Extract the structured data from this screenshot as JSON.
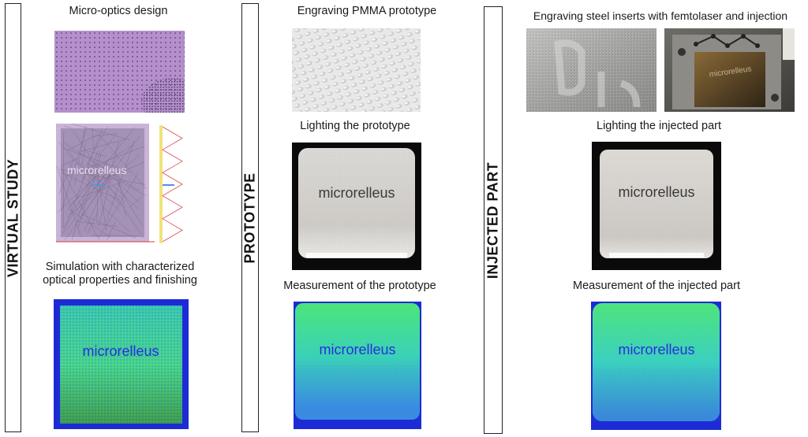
{
  "columns": [
    {
      "label": "VIRTUAL STUDY",
      "captions": {
        "top": "Micro-optics design",
        "mid": "Simulation with characterized\noptical properties and finishing"
      },
      "word": "microrelleus"
    },
    {
      "label": "PROTOTYPE",
      "captions": {
        "top": "Engraving PMMA prototype",
        "mid": "Lighting the prototype",
        "bottom": "Measurement of the prototype"
      },
      "word": "microrelleus"
    },
    {
      "label": "INJECTED PART",
      "captions": {
        "top": "Engraving steel inserts with femtolaser and injection",
        "mid": "Lighting the injected part",
        "bottom": "Measurement of the injected part"
      },
      "word": "microrelleus"
    }
  ],
  "colors": {
    "design_purple": "#b08cc8",
    "heatmap_blue": "#1d2bd6",
    "heatmap_green": "#3fd39a",
    "lit_panel": "#d8d6d2",
    "dark_frame": "#0a0a0a"
  }
}
